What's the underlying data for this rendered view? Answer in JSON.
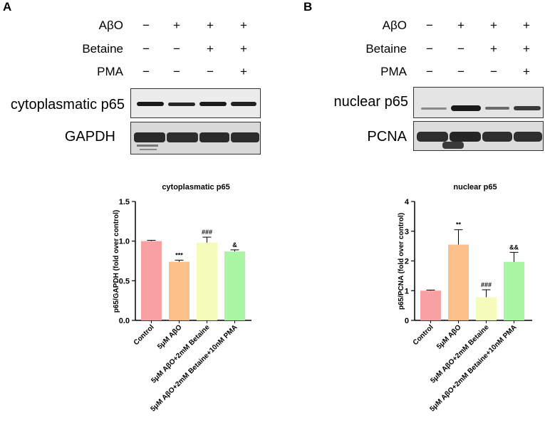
{
  "colors": {
    "control": "#F7A1A2",
    "abo": "#FBC08A",
    "abo_betaine": "#F5FBB9",
    "abo_betaine_pma": "#A9F7A5",
    "error": "#000000"
  },
  "panels": [
    {
      "letter": "A",
      "conditions": [
        {
          "name": "AβO",
          "signs": [
            "−",
            "+",
            "+",
            "+"
          ]
        },
        {
          "name": "Betaine",
          "signs": [
            "−",
            "−",
            "+",
            "+"
          ]
        },
        {
          "name": "PMA",
          "signs": [
            "−",
            "−",
            "−",
            "+"
          ]
        }
      ],
      "blots": [
        {
          "label": "cytoplasmatic p65",
          "intensities": [
            0.85,
            0.78,
            0.85,
            0.8
          ]
        },
        {
          "label": "GAPDH",
          "intensities": [
            0.9,
            0.9,
            0.9,
            0.9
          ]
        }
      ]
    },
    {
      "letter": "B",
      "conditions": [
        {
          "name": "AβO",
          "signs": [
            "−",
            "+",
            "+",
            "+"
          ]
        },
        {
          "name": "Betaine",
          "signs": [
            "−",
            "−",
            "+",
            "+"
          ]
        },
        {
          "name": "PMA",
          "signs": [
            "−",
            "−",
            "−",
            "+"
          ]
        }
      ],
      "blots": [
        {
          "label": "nuclear p65",
          "intensities": [
            0.25,
            0.9,
            0.4,
            0.65
          ]
        },
        {
          "label": "PCNA",
          "intensities": [
            0.9,
            0.95,
            0.9,
            0.9
          ]
        }
      ]
    }
  ],
  "chart_data": [
    {
      "type": "bar",
      "title": "cytoplasmatic p65",
      "ylabel": "p65/GAPDH (fold over control)",
      "xlabel": "",
      "categories": [
        "Control",
        "5μM AβO",
        "5μM AβO+2mM Betaine",
        "5μM AβO+2mM Betaine+10nM PMA"
      ],
      "values": [
        1.0,
        0.74,
        0.98,
        0.87
      ],
      "errors": [
        0.01,
        0.02,
        0.07,
        0.02
      ],
      "annotations": [
        "",
        "***",
        "###",
        "&"
      ],
      "ylim": [
        0,
        1.5
      ],
      "yticks": [
        "0.0",
        "0.5",
        "1.0",
        "1.5"
      ],
      "ytick_values": [
        0,
        0.5,
        1.0,
        1.5
      ],
      "grid": false,
      "legend": "none"
    },
    {
      "type": "bar",
      "title": "nuclear p65",
      "ylabel": "p65/PCNA (fold over control)",
      "xlabel": "",
      "categories": [
        "Control",
        "5μM AβO",
        "5μM AβO+2mM Betaine",
        "5μM AβO+2mM Betaine+10nM PMA"
      ],
      "values": [
        1.0,
        2.55,
        0.78,
        1.97
      ],
      "errors": [
        0.02,
        0.5,
        0.25,
        0.32
      ],
      "annotations": [
        "",
        "**",
        "###",
        "&&"
      ],
      "ylim": [
        0,
        4
      ],
      "yticks": [
        "0",
        "1",
        "2",
        "3",
        "4"
      ],
      "ytick_values": [
        0,
        1,
        2,
        3,
        4
      ],
      "grid": false,
      "legend": "none"
    }
  ]
}
